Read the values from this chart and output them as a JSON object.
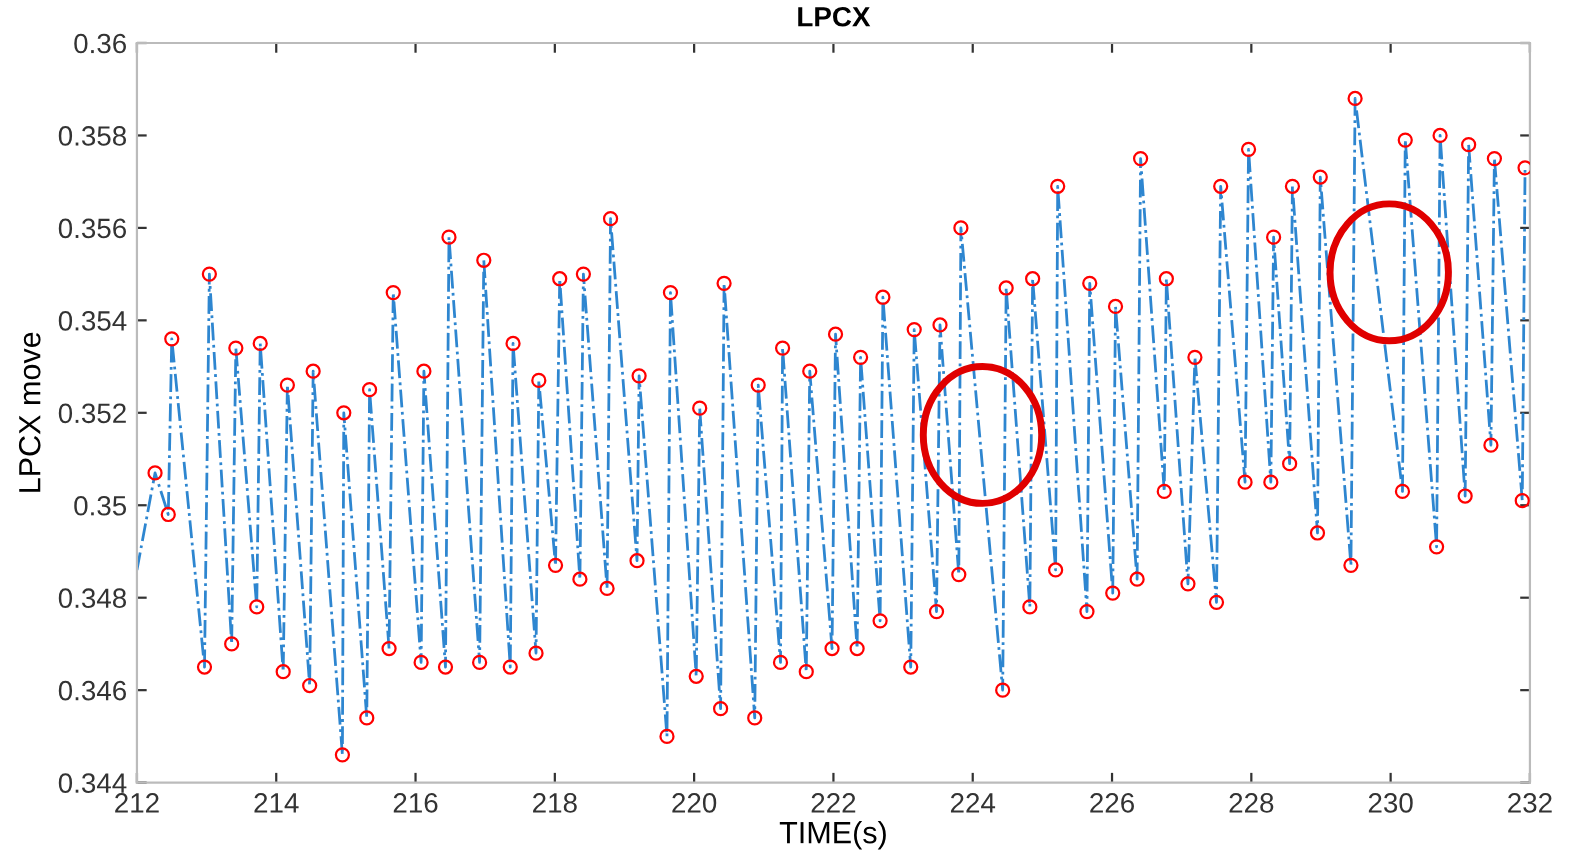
{
  "chart_data": {
    "type": "line",
    "title": "LPCX",
    "xlabel": "TIME(s)",
    "ylabel": "LPCX move",
    "xlim": [
      212,
      232
    ],
    "xticks": [
      212,
      214,
      216,
      218,
      220,
      222,
      224,
      226,
      228,
      230,
      232
    ],
    "ylim": [
      0.344,
      0.36
    ],
    "yticks": [
      0.344,
      0.346,
      0.348,
      0.35,
      0.352,
      0.354,
      0.356,
      0.358,
      0.36
    ],
    "grid": false,
    "legend": false,
    "series": [
      {
        "color": "#2e86d0",
        "line_style": "dashed",
        "marker": "none",
        "x": [
          212.0,
          212.26,
          212.45,
          212.5,
          212.97,
          213.04,
          213.36,
          213.42,
          213.72,
          213.77,
          214.1,
          214.16,
          214.48,
          214.53,
          214.95,
          214.97,
          215.3,
          215.34,
          215.62,
          215.68,
          216.08,
          216.12,
          216.43,
          216.48,
          216.92,
          216.98,
          217.36,
          217.4,
          217.73,
          217.77,
          218.01,
          218.07,
          218.36,
          218.41,
          218.75,
          218.8,
          219.18,
          219.21,
          219.61,
          219.66,
          220.03,
          220.08,
          220.38,
          220.43,
          220.87,
          220.92,
          221.24,
          221.27,
          221.61,
          221.66,
          221.98,
          222.03,
          222.34,
          222.39,
          222.67,
          222.71,
          223.11,
          223.16,
          223.48,
          223.53,
          223.8,
          223.83,
          224.43,
          224.48,
          224.82,
          224.86,
          225.19,
          225.22,
          225.64,
          225.68,
          226.01,
          226.05,
          226.36,
          226.41,
          226.75,
          226.78,
          227.09,
          227.19,
          227.5,
          227.56,
          227.91,
          227.96,
          228.28,
          228.32,
          228.55,
          228.59,
          228.95,
          228.99,
          229.43,
          229.49,
          230.17,
          230.21,
          230.66,
          230.71,
          231.07,
          231.12,
          231.44,
          231.49,
          231.89,
          231.93
        ],
        "values": [
          0.3486,
          0.3507,
          0.3498,
          0.3536,
          0.3465,
          0.355,
          0.347,
          0.3534,
          0.3478,
          0.3535,
          0.3464,
          0.3526,
          0.3461,
          0.3529,
          0.3446,
          0.352,
          0.3454,
          0.3525,
          0.3469,
          0.3546,
          0.3466,
          0.3529,
          0.3465,
          0.3558,
          0.3466,
          0.3553,
          0.3465,
          0.3535,
          0.3468,
          0.3527,
          0.3487,
          0.3549,
          0.3484,
          0.355,
          0.3482,
          0.3562,
          0.3488,
          0.3528,
          0.345,
          0.3546,
          0.3463,
          0.3521,
          0.3456,
          0.3548,
          0.3454,
          0.3526,
          0.3466,
          0.3534,
          0.3464,
          0.3529,
          0.3469,
          0.3537,
          0.3469,
          0.3532,
          0.3475,
          0.3545,
          0.3465,
          0.3538,
          0.3477,
          0.3539,
          0.3485,
          0.356,
          0.346,
          0.3547,
          0.3478,
          0.3549,
          0.3486,
          0.3569,
          0.3477,
          0.3548,
          0.3481,
          0.3543,
          0.3484,
          0.3575,
          0.3503,
          0.3549,
          0.3483,
          0.3532,
          0.3479,
          0.3569,
          0.3505,
          0.3577,
          0.3505,
          0.3558,
          0.3509,
          0.3569,
          0.3494,
          0.3571,
          0.3487,
          0.3588,
          0.3503,
          0.3579,
          0.3491,
          0.358,
          0.3502,
          0.3578,
          0.3513,
          0.3575,
          0.3501,
          0.3573
        ]
      },
      {
        "type": "scatter",
        "color": "#ff0000",
        "marker": "circle",
        "x": [
          212.26,
          212.45,
          212.5,
          212.97,
          213.04,
          213.36,
          213.42,
          213.72,
          213.77,
          214.1,
          214.16,
          214.48,
          214.53,
          214.95,
          214.97,
          215.3,
          215.34,
          215.62,
          215.68,
          216.08,
          216.12,
          216.43,
          216.48,
          216.92,
          216.98,
          217.36,
          217.4,
          217.73,
          217.77,
          218.01,
          218.07,
          218.36,
          218.41,
          218.75,
          218.8,
          219.18,
          219.21,
          219.61,
          219.66,
          220.03,
          220.08,
          220.38,
          220.43,
          220.87,
          220.92,
          221.24,
          221.27,
          221.61,
          221.66,
          221.98,
          222.03,
          222.34,
          222.39,
          222.67,
          222.71,
          223.11,
          223.16,
          223.48,
          223.53,
          223.8,
          223.83,
          224.43,
          224.48,
          224.82,
          224.86,
          225.19,
          225.22,
          225.64,
          225.68,
          226.01,
          226.05,
          226.36,
          226.41,
          226.75,
          226.78,
          227.09,
          227.19,
          227.5,
          227.56,
          227.91,
          227.96,
          228.28,
          228.32,
          228.55,
          228.59,
          228.95,
          228.99,
          229.43,
          229.49,
          230.17,
          230.21,
          230.66,
          230.71,
          231.07,
          231.12,
          231.44,
          231.49,
          231.89,
          231.93
        ],
        "values": [
          0.3507,
          0.3498,
          0.3536,
          0.3465,
          0.355,
          0.347,
          0.3534,
          0.3478,
          0.3535,
          0.3464,
          0.3526,
          0.3461,
          0.3529,
          0.3446,
          0.352,
          0.3454,
          0.3525,
          0.3469,
          0.3546,
          0.3466,
          0.3529,
          0.3465,
          0.3558,
          0.3466,
          0.3553,
          0.3465,
          0.3535,
          0.3468,
          0.3527,
          0.3487,
          0.3549,
          0.3484,
          0.355,
          0.3482,
          0.3562,
          0.3488,
          0.3528,
          0.345,
          0.3546,
          0.3463,
          0.3521,
          0.3456,
          0.3548,
          0.3454,
          0.3526,
          0.3466,
          0.3534,
          0.3464,
          0.3529,
          0.3469,
          0.3537,
          0.3469,
          0.3532,
          0.3475,
          0.3545,
          0.3465,
          0.3538,
          0.3477,
          0.3539,
          0.3485,
          0.356,
          0.346,
          0.3547,
          0.3478,
          0.3549,
          0.3486,
          0.3569,
          0.3477,
          0.3548,
          0.3481,
          0.3543,
          0.3484,
          0.3575,
          0.3503,
          0.3549,
          0.3483,
          0.3532,
          0.3479,
          0.3569,
          0.3505,
          0.3577,
          0.3505,
          0.3558,
          0.3509,
          0.3569,
          0.3494,
          0.3571,
          0.3487,
          0.3588,
          0.3503,
          0.3579,
          0.3491,
          0.358,
          0.3502,
          0.3578,
          0.3513,
          0.3575,
          0.3501,
          0.3573
        ]
      }
    ]
  }
}
